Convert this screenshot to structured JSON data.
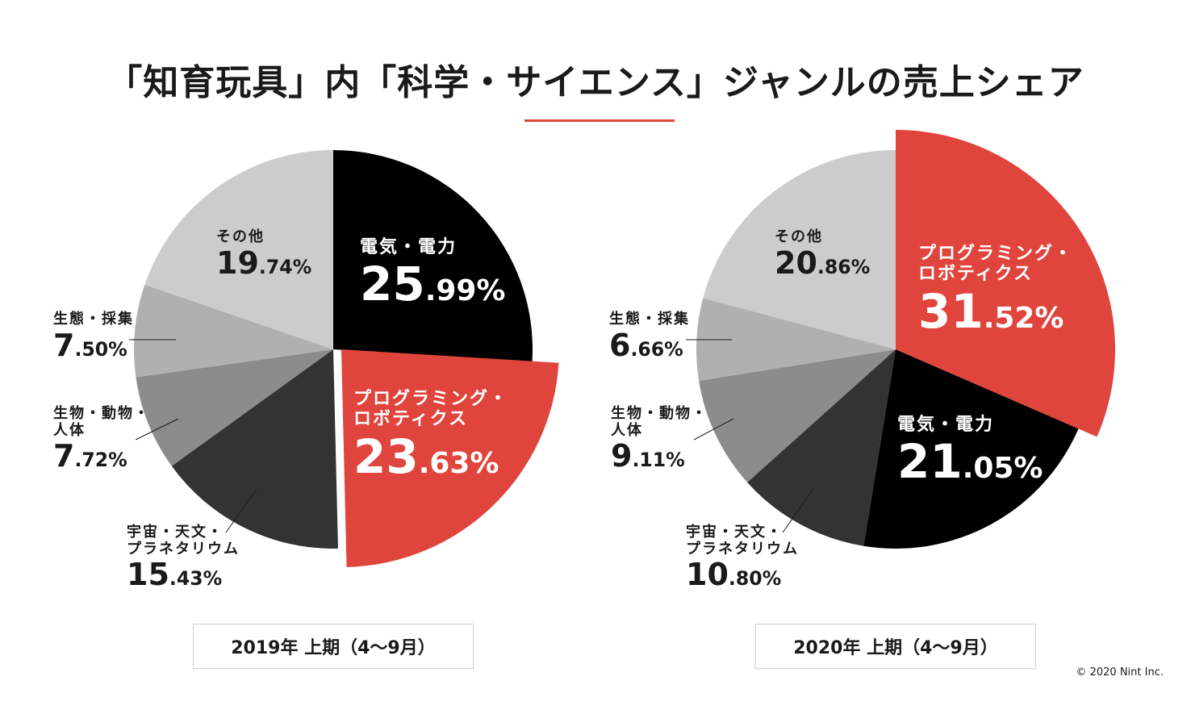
{
  "title": "「知育玩具」内「科学・サイエンス」ジャンルの売上シェア",
  "copyright": "© 2020 Nint Inc.",
  "colors": {
    "accent": "#e0453d",
    "electric": "#000000",
    "space": "#333333",
    "biology": "#8c8c8c",
    "ecology": "#b0b0b0",
    "other": "#cccccc"
  },
  "chart_data": [
    {
      "type": "pie",
      "title": "2019年 上期（4～9月）",
      "unit": "%",
      "slices": [
        {
          "label": "電気・電力",
          "value": 25.99,
          "int": "25",
          "dec": ".99%",
          "color": "#000000",
          "highlight": false
        },
        {
          "label": "プログラミング・\nロボティクス",
          "value": 23.63,
          "int": "23",
          "dec": ".63%",
          "color": "#e0453d",
          "highlight": true
        },
        {
          "label": "宇宙・天文・\nプラネタリウム",
          "value": 15.43,
          "int": "15",
          "dec": ".43%",
          "color": "#333333",
          "highlight": false
        },
        {
          "label": "生物・動物・\n人体",
          "value": 7.72,
          "int": "7",
          "dec": ".72%",
          "color": "#8c8c8c",
          "highlight": false
        },
        {
          "label": "生態・採集",
          "value": 7.5,
          "int": "7",
          "dec": ".50%",
          "color": "#b0b0b0",
          "highlight": false
        },
        {
          "label": "その他",
          "value": 19.74,
          "int": "19",
          "dec": ".74%",
          "color": "#cccccc",
          "highlight": false
        }
      ]
    },
    {
      "type": "pie",
      "title": "2020年 上期（4～9月）",
      "unit": "%",
      "slices": [
        {
          "label": "プログラミング・\nロボティクス",
          "value": 31.52,
          "int": "31",
          "dec": ".52%",
          "color": "#e0453d",
          "highlight": true
        },
        {
          "label": "電気・電力",
          "value": 21.05,
          "int": "21",
          "dec": ".05%",
          "color": "#000000",
          "highlight": false
        },
        {
          "label": "宇宙・天文・\nプラネタリウム",
          "value": 10.8,
          "int": "10",
          "dec": ".80%",
          "color": "#333333",
          "highlight": false
        },
        {
          "label": "生物・動物・\n人体",
          "value": 9.11,
          "int": "9",
          "dec": ".11%",
          "color": "#8c8c8c",
          "highlight": false
        },
        {
          "label": "生態・採集",
          "value": 6.66,
          "int": "6",
          "dec": ".66%",
          "color": "#b0b0b0",
          "highlight": false
        },
        {
          "label": "その他",
          "value": 20.86,
          "int": "20",
          "dec": ".86%",
          "color": "#cccccc",
          "highlight": false
        }
      ]
    }
  ]
}
